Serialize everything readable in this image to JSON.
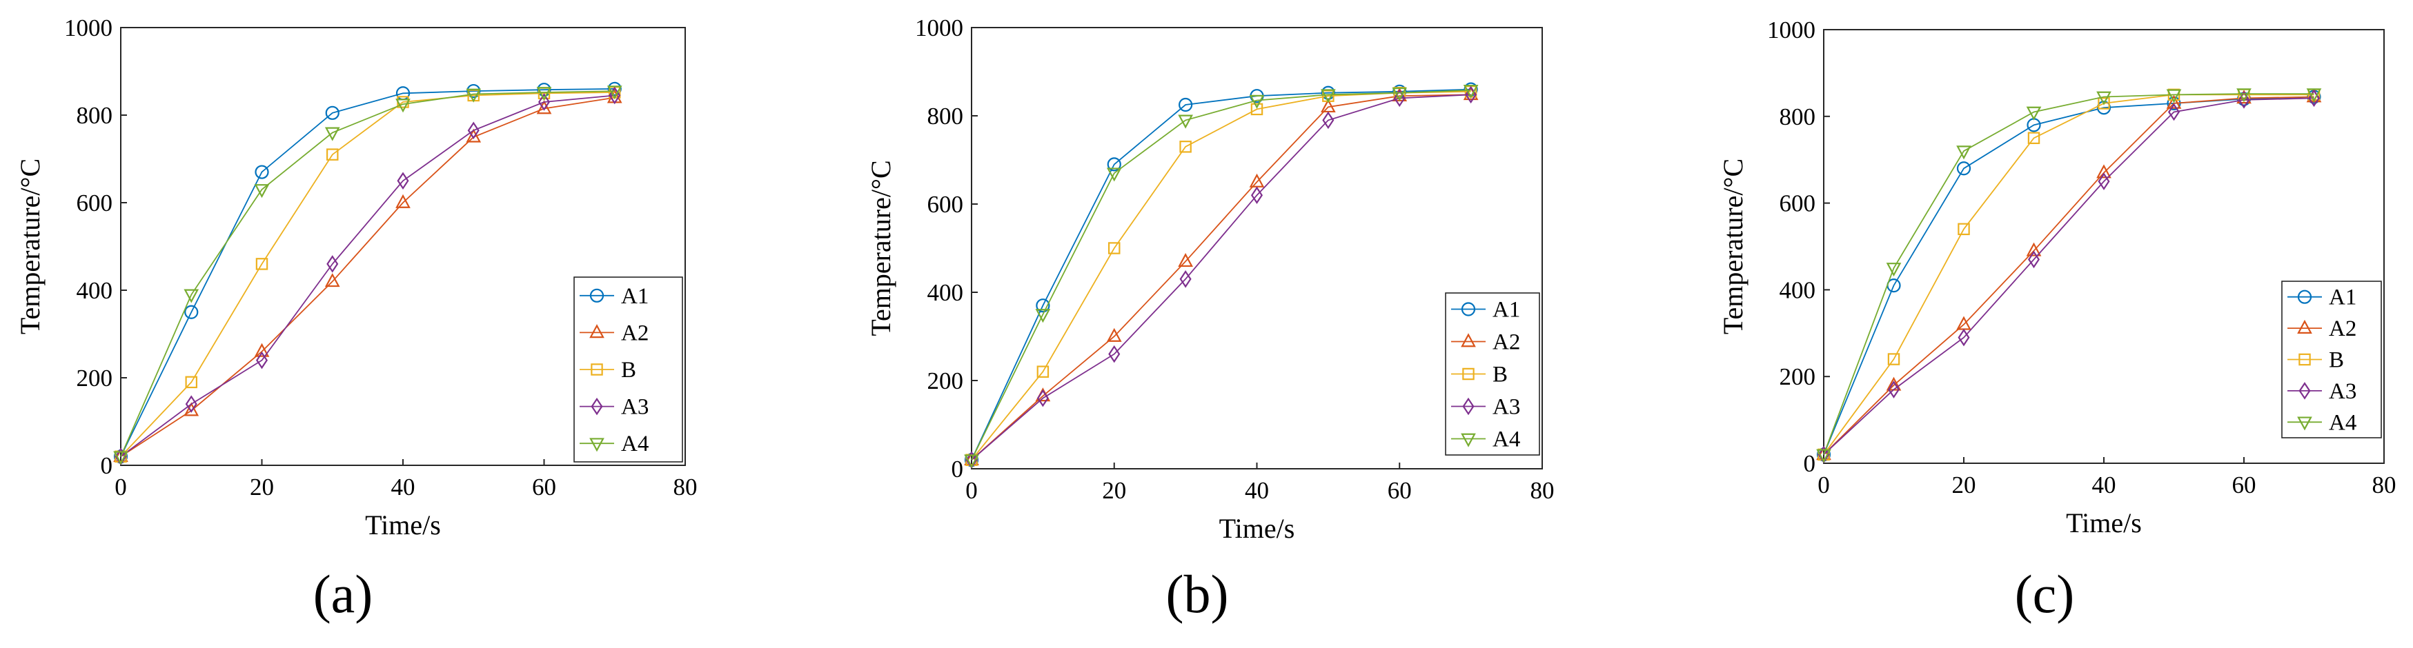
{
  "figure": {
    "panels": [
      "(a)",
      "(b)",
      "(c)"
    ]
  },
  "series_colors": {
    "A1": "#0072bd",
    "A2": "#d95319",
    "B": "#edb120",
    "A3": "#7e2f8e",
    "A4": "#77ac30"
  },
  "chart_data": [
    {
      "type": "line",
      "title": "",
      "panel_label": "(a)",
      "xlabel": "Time/s",
      "ylabel": "Temperature/°C",
      "xlim": [
        0,
        80
      ],
      "ylim": [
        0,
        1000
      ],
      "xticks": [
        "0",
        "20",
        "40",
        "60",
        "80"
      ],
      "yticks": [
        "0",
        "200",
        "400",
        "600",
        "800",
        "1000"
      ],
      "x": [
        0,
        10,
        20,
        30,
        40,
        50,
        60,
        70
      ],
      "legend_position": "bottom-right",
      "series": [
        {
          "name": "A1",
          "marker": "circle",
          "values": [
            20,
            350,
            670,
            805,
            850,
            855,
            858,
            860
          ]
        },
        {
          "name": "A2",
          "marker": "triangle-up",
          "values": [
            20,
            125,
            260,
            420,
            600,
            750,
            815,
            840
          ]
        },
        {
          "name": "B",
          "marker": "square",
          "values": [
            20,
            190,
            460,
            710,
            830,
            845,
            850,
            852
          ]
        },
        {
          "name": "A3",
          "marker": "diamond",
          "values": [
            20,
            140,
            240,
            460,
            650,
            765,
            830,
            845
          ]
        },
        {
          "name": "A4",
          "marker": "triangle-down",
          "values": [
            20,
            390,
            630,
            760,
            825,
            848,
            852,
            855
          ]
        }
      ]
    },
    {
      "type": "line",
      "title": "",
      "panel_label": "(b)",
      "xlabel": "Time/s",
      "ylabel": "Temperature/°C",
      "xlim": [
        0,
        80
      ],
      "ylim": [
        0,
        1000
      ],
      "xticks": [
        "0",
        "20",
        "40",
        "60",
        "80"
      ],
      "yticks": [
        "0",
        "200",
        "400",
        "600",
        "800",
        "1000"
      ],
      "x": [
        0,
        10,
        20,
        30,
        40,
        50,
        60,
        70
      ],
      "legend_position": "bottom-right",
      "series": [
        {
          "name": "A1",
          "marker": "circle",
          "values": [
            20,
            370,
            690,
            825,
            845,
            852,
            855,
            860
          ]
        },
        {
          "name": "A2",
          "marker": "triangle-up",
          "values": [
            20,
            165,
            300,
            470,
            650,
            820,
            845,
            848
          ]
        },
        {
          "name": "B",
          "marker": "square",
          "values": [
            20,
            220,
            500,
            730,
            815,
            845,
            852,
            855
          ]
        },
        {
          "name": "A3",
          "marker": "diamond",
          "values": [
            20,
            160,
            260,
            430,
            620,
            790,
            840,
            848
          ]
        },
        {
          "name": "A4",
          "marker": "triangle-down",
          "values": [
            20,
            350,
            670,
            790,
            835,
            848,
            852,
            858
          ]
        }
      ]
    },
    {
      "type": "line",
      "title": "",
      "panel_label": "(c)",
      "xlabel": "Time/s",
      "ylabel": "Temperature/°C",
      "xlim": [
        0,
        80
      ],
      "ylim": [
        0,
        1000
      ],
      "xticks": [
        "0",
        "20",
        "40",
        "60",
        "80"
      ],
      "yticks": [
        "0",
        "200",
        "400",
        "600",
        "800",
        "1000"
      ],
      "x": [
        0,
        10,
        20,
        30,
        40,
        50,
        60,
        70
      ],
      "legend_position": "bottom-right",
      "series": [
        {
          "name": "A1",
          "marker": "circle",
          "values": [
            20,
            410,
            680,
            780,
            820,
            830,
            840,
            845
          ]
        },
        {
          "name": "A2",
          "marker": "triangle-up",
          "values": [
            20,
            180,
            320,
            490,
            670,
            830,
            842,
            845
          ]
        },
        {
          "name": "B",
          "marker": "square",
          "values": [
            20,
            240,
            540,
            750,
            830,
            850,
            850,
            850
          ]
        },
        {
          "name": "A3",
          "marker": "diamond",
          "values": [
            20,
            170,
            290,
            470,
            650,
            810,
            838,
            842
          ]
        },
        {
          "name": "A4",
          "marker": "triangle-down",
          "values": [
            20,
            450,
            720,
            810,
            845,
            850,
            852,
            852
          ]
        }
      ]
    }
  ]
}
